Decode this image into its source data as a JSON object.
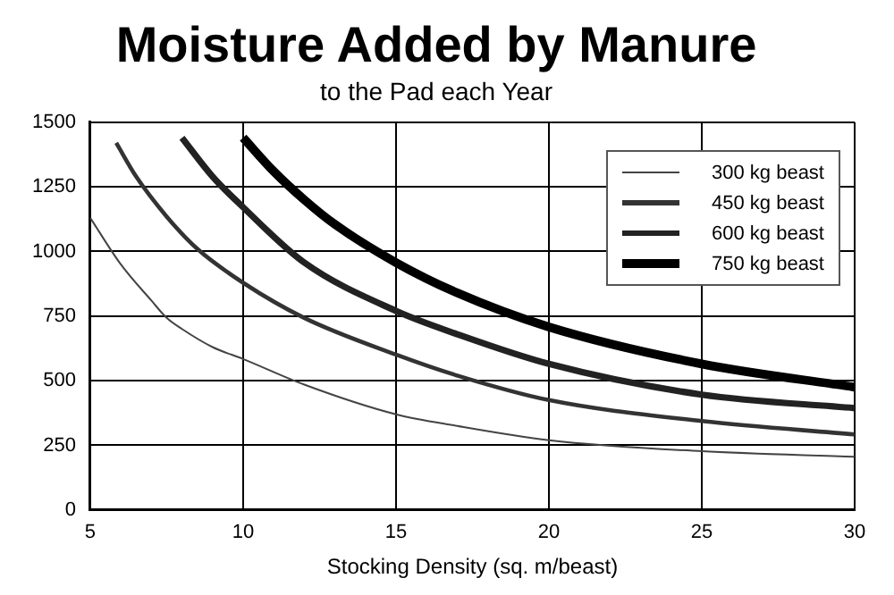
{
  "chart_data": {
    "type": "line",
    "title": "Moisture Added by Manure",
    "subtitle": "to the Pad each Year",
    "xlabel": "Stocking Density (sq. m/beast)",
    "series": [
      {
        "name": "300 kg beast",
        "color": "#444444",
        "x": [
          5,
          6,
          7,
          7.5,
          8,
          9,
          10,
          12,
          15,
          17,
          20,
          25,
          30
        ],
        "values": [
          1130,
          950,
          810,
          743,
          700,
          630,
          584,
          485,
          370,
          325,
          270,
          227,
          206
        ]
      },
      {
        "name": "450 kg beast",
        "color": "#333333",
        "x": [
          5.85,
          6.5,
          7.5,
          8.5,
          10,
          12,
          15,
          17,
          20,
          25,
          30
        ],
        "values": [
          1420,
          1290,
          1135,
          1010,
          879,
          743,
          601,
          520,
          425,
          344,
          292
        ]
      },
      {
        "name": "600 kg beast",
        "color": "#222222",
        "x": [
          8,
          9,
          10,
          12,
          15,
          17,
          20,
          25,
          30
        ],
        "values": [
          1440,
          1290,
          1171,
          957,
          770,
          680,
          565,
          446,
          394
        ]
      },
      {
        "name": "750 kg beast",
        "color": "#000000",
        "x": [
          10,
          11,
          12,
          13,
          15,
          17,
          20,
          25,
          30
        ],
        "values": [
          1440,
          1310,
          1200,
          1105,
          957,
          840,
          708,
          565,
          475
        ]
      }
    ],
    "xlim": [
      5,
      30
    ],
    "xticks": [
      5,
      10,
      15,
      20,
      25,
      30
    ],
    "ylim": [
      0,
      1500
    ],
    "yticks": [
      0,
      250,
      500,
      750,
      {
        "value": 1000,
        "label": "1000"
      },
      {
        "value": 1250,
        "label": "1250"
      },
      {
        "value": 1500,
        "label": "1500"
      }
    ],
    "grid": true,
    "legend": "top right",
    "marker": "none",
    "line_style": "solid"
  }
}
